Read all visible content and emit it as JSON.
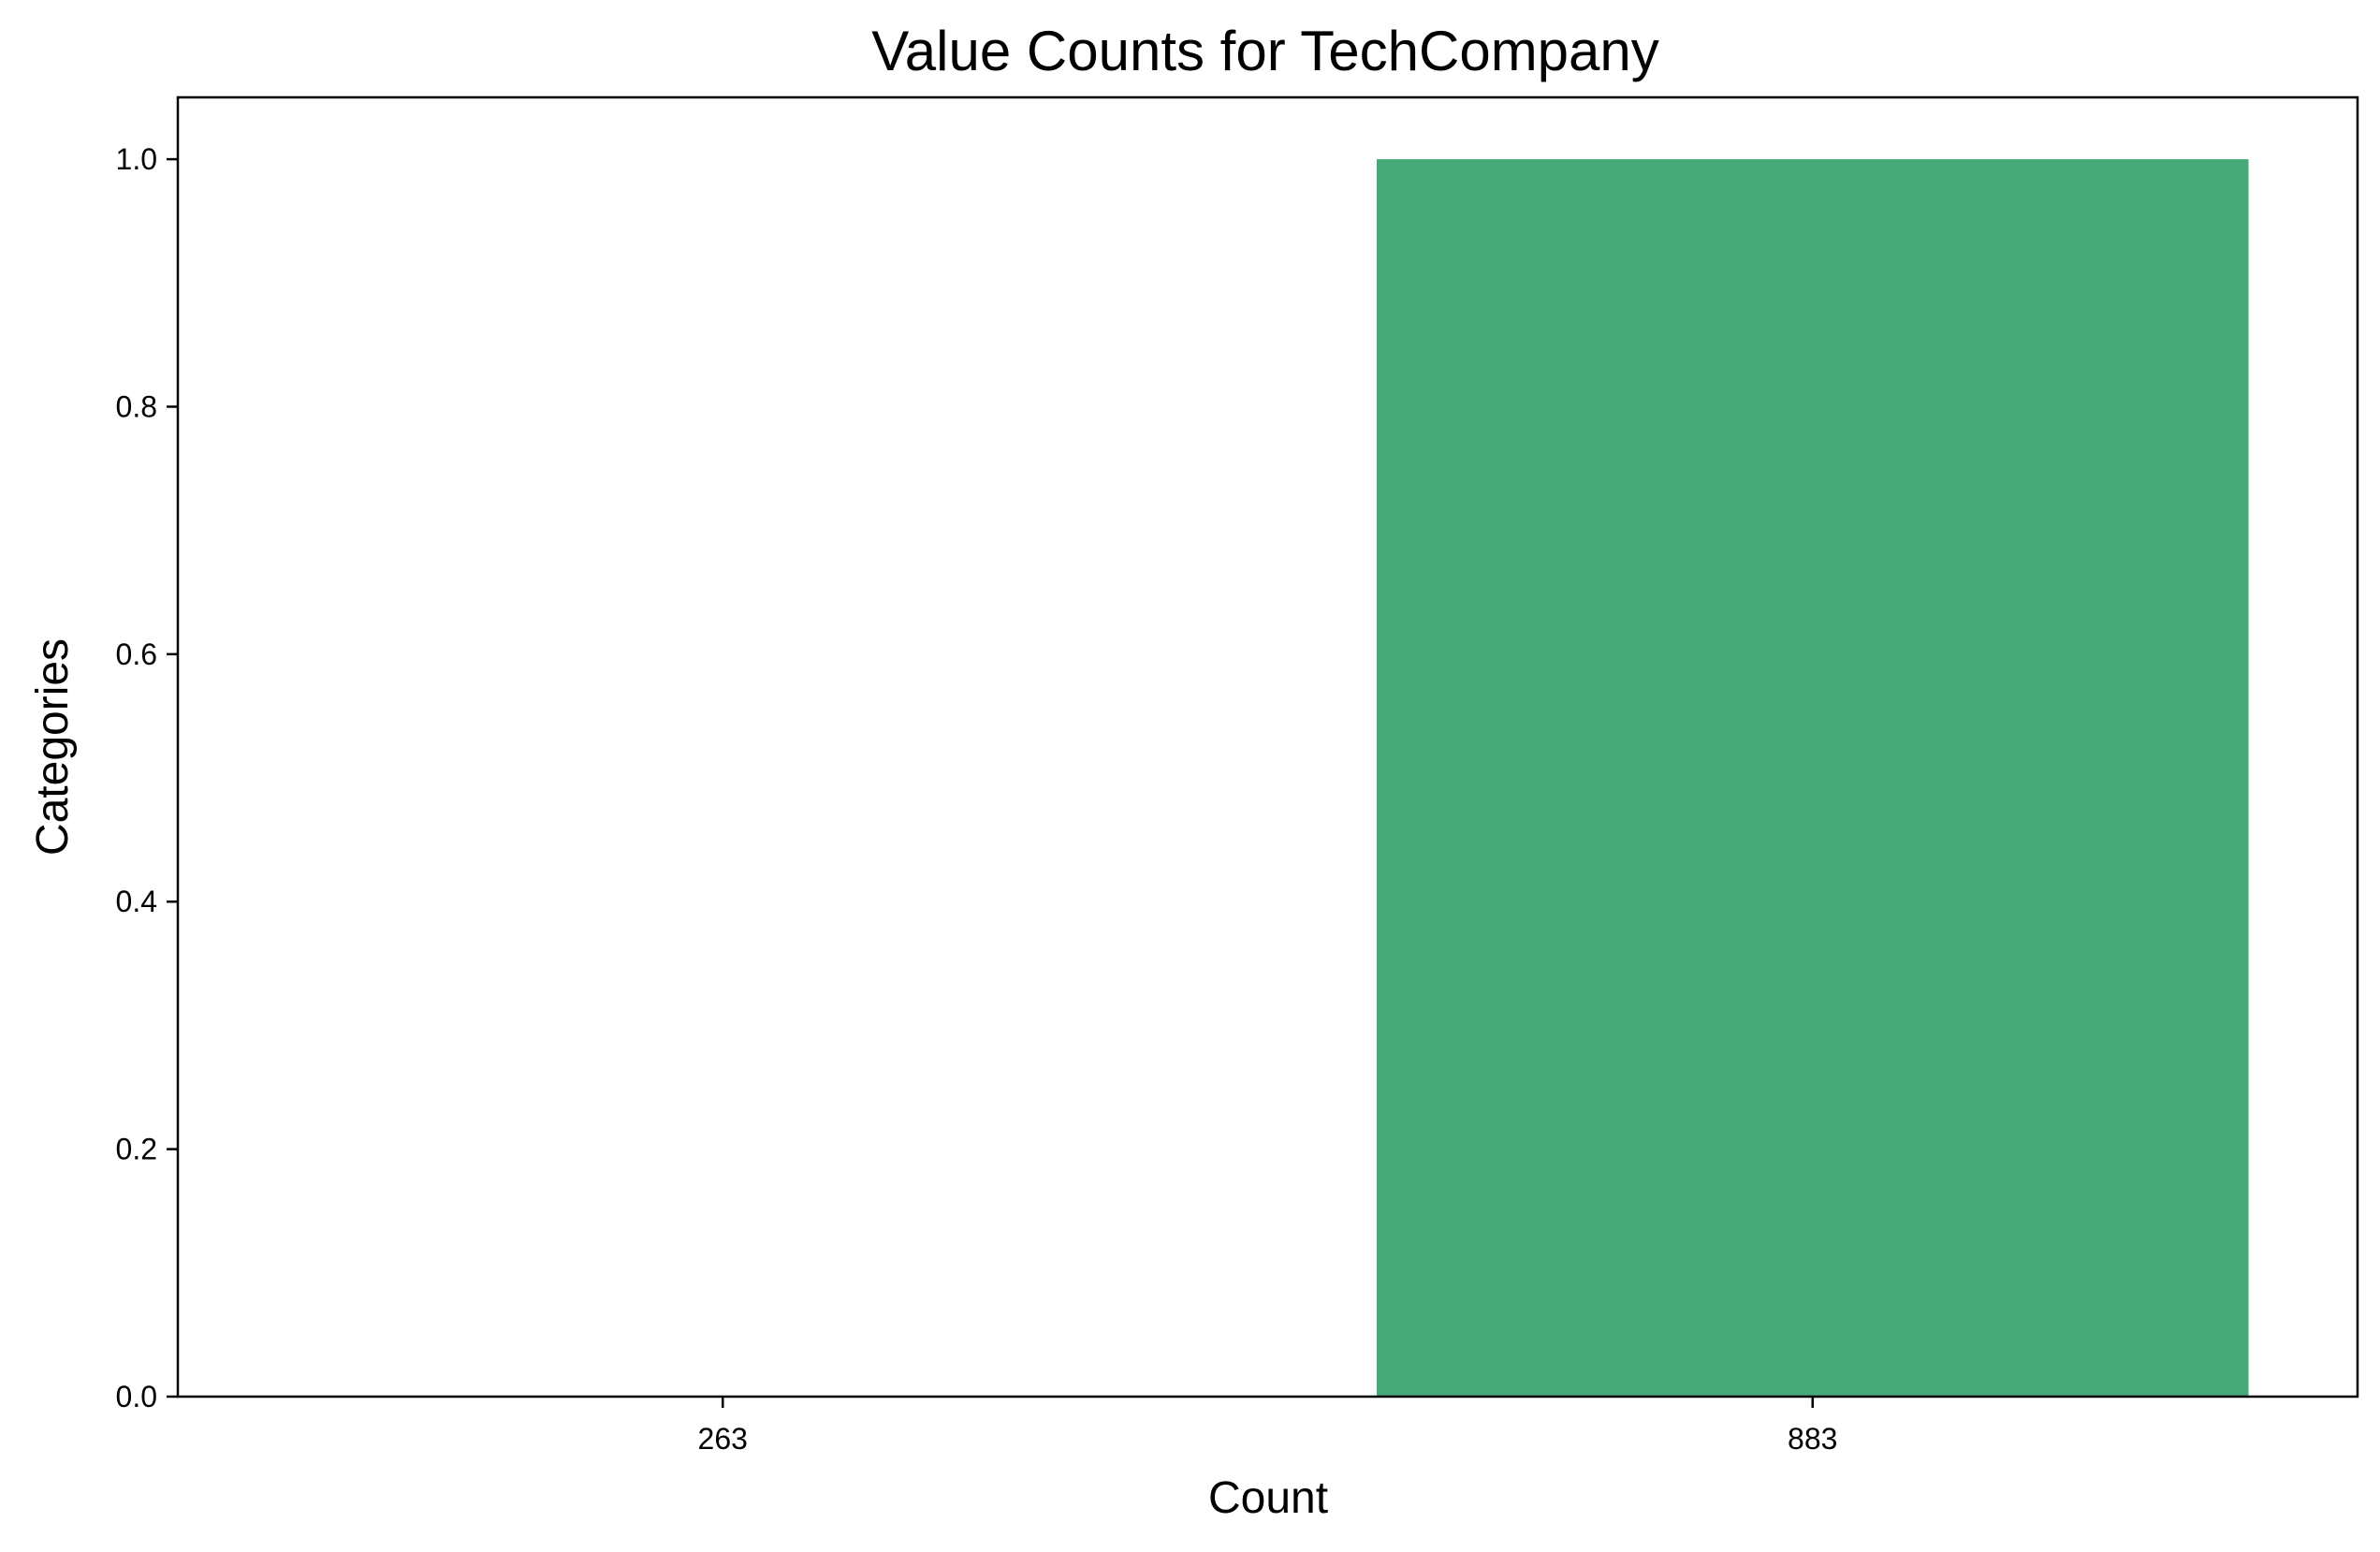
{
  "chart_data": {
    "type": "bar",
    "title": "Value Counts for TechCompany",
    "xlabel": "Count",
    "ylabel": "Categories",
    "categories": [
      "263",
      "883"
    ],
    "values": [
      0,
      1
    ],
    "ylim": [
      0,
      1.05
    ],
    "yticks": [
      0.0,
      0.2,
      0.4,
      0.6,
      0.8,
      1.0
    ],
    "ytick_labels": [
      "0.0",
      "0.2",
      "0.4",
      "0.6",
      "0.8",
      "1.0"
    ],
    "bar_color": "#47a87a",
    "grid": false,
    "legend": "none"
  }
}
